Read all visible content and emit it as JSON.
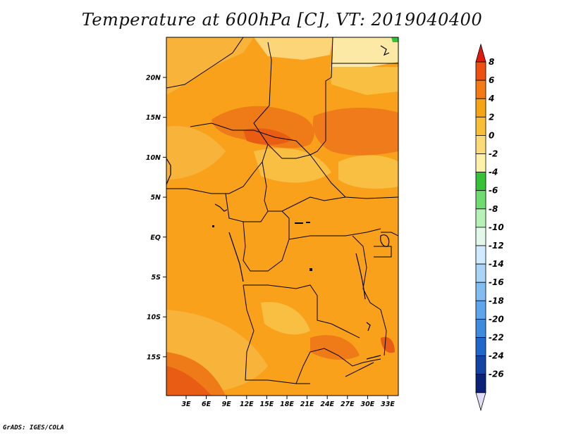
{
  "title": "Temperature at 600hPa [C], VT: 2019040400",
  "footer": "GrADS: IGES/COLA",
  "map": {
    "lat_ticks": [
      "20N",
      "15N",
      "10N",
      "5N",
      "EQ",
      "5S",
      "10S",
      "15S"
    ],
    "lon_ticks": [
      "3E",
      "6E",
      "9E",
      "12E",
      "15E",
      "18E",
      "21E",
      "24E",
      "27E",
      "30E",
      "33E"
    ]
  },
  "colorbar": {
    "labels": [
      "8",
      "6",
      "4",
      "2",
      "0",
      "-2",
      "-4",
      "-6",
      "-8",
      "-10",
      "-12",
      "-14",
      "-16",
      "-18",
      "-20",
      "-22",
      "-24",
      "-26"
    ],
    "colors": [
      "#e11a0f",
      "#f0500f",
      "#f57a14",
      "#f7a414",
      "#f8bf36",
      "#fbdb75",
      "#fff2a8",
      "#36c236",
      "#6edc6e",
      "#b6f1b6",
      "#e2f8ea",
      "#d0eaff",
      "#a9d3f7",
      "#82bdf2",
      "#5da5ed",
      "#3c8bdf",
      "#1e67cc",
      "#1444a3",
      "#0a2378",
      "#e0dcf6"
    ]
  }
}
